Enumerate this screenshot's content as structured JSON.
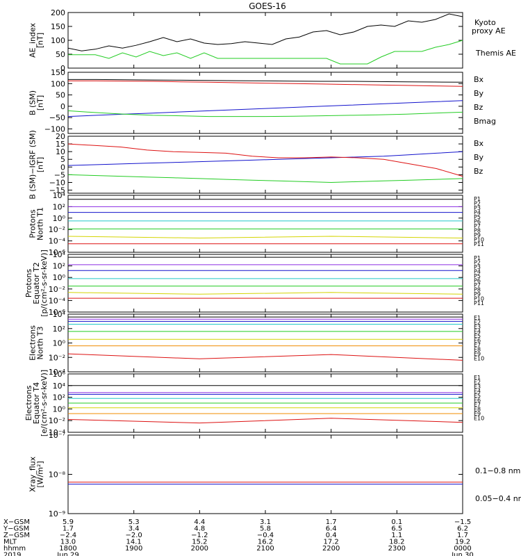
{
  "title": "GOES-16",
  "colors": {
    "black": "#000000",
    "green": "#22cc22",
    "blue": "#1111cc",
    "red": "#dd1111",
    "cyan": "#22c8c8",
    "orange": "#f08c00",
    "yellow": "#d4d400",
    "purple": "#8a2be2",
    "magenta": "#dd11dd",
    "brown": "#8b4513"
  },
  "chart_data": [
    {
      "id": "ae",
      "type": "line",
      "ylabel": "AE_index\n[nT]",
      "ylim": [
        0,
        200
      ],
      "yticks": [
        "200",
        "150",
        "100",
        "50",
        "0"
      ],
      "yvals": [
        200,
        150,
        100,
        50,
        0
      ],
      "legend": [
        {
          "label": "Kyoto\nproxy AE",
          "color": "green"
        },
        {
          "label": "Themis AE",
          "color": "black"
        }
      ],
      "series": [
        {
          "name": "Themis AE",
          "color": "black",
          "values": [
            72,
            62,
            68,
            80,
            72,
            82,
            95,
            110,
            95,
            105,
            90,
            85,
            88,
            95,
            90,
            85,
            105,
            112,
            130,
            135,
            120,
            130,
            150,
            155,
            150,
            170,
            165,
            175,
            195,
            185
          ]
        },
        {
          "name": "Kyoto proxy AE",
          "color": "green",
          "values": [
            48,
            48,
            48,
            35,
            55,
            40,
            60,
            45,
            55,
            35,
            55,
            35,
            35,
            35,
            35,
            35,
            35,
            35,
            35,
            35,
            15,
            15,
            15,
            40,
            60,
            60,
            60,
            75,
            85,
            100
          ]
        }
      ]
    },
    {
      "id": "bsm",
      "type": "line",
      "ylabel": "B (SM)\n[nT]",
      "ylim": [
        -120,
        150
      ],
      "yticks": [
        "150",
        "100",
        "50",
        "0",
        "−50",
        "−100"
      ],
      "yvals": [
        150,
        100,
        50,
        0,
        -50,
        -100
      ],
      "legend": [
        {
          "label": "Bx",
          "color": "blue"
        },
        {
          "label": "By",
          "color": "green"
        },
        {
          "label": "Bz",
          "color": "red"
        },
        {
          "label": "Bmag",
          "color": "black"
        }
      ],
      "series": [
        {
          "name": "Bx",
          "color": "blue",
          "values": [
            -45,
            -40,
            -35,
            -30,
            -25,
            -20,
            -15,
            -10,
            -5,
            0,
            5,
            10,
            15,
            20,
            25
          ]
        },
        {
          "name": "By",
          "color": "green",
          "values": [
            -20,
            -28,
            -35,
            -40,
            -42,
            -45,
            -45,
            -45,
            -44,
            -42,
            -40,
            -38,
            -35,
            -30,
            -26
          ]
        },
        {
          "name": "Bz",
          "color": "red",
          "values": [
            112,
            112,
            111,
            110,
            108,
            106,
            104,
            102,
            100,
            98,
            96,
            94,
            92,
            90,
            88
          ]
        },
        {
          "name": "Bmag",
          "color": "black",
          "values": [
            118,
            118,
            117,
            116,
            115,
            114,
            113,
            112,
            111,
            110,
            110,
            109,
            108,
            107,
            106
          ]
        }
      ]
    },
    {
      "id": "bdiff",
      "type": "line",
      "ylabel": "B (SM)−IGRF (SM)\n[nT]",
      "ylim": [
        -17,
        20
      ],
      "yticks": [
        "20",
        "15",
        "10",
        "5",
        "0",
        "−5",
        "−10",
        "−15"
      ],
      "yvals": [
        20,
        15,
        10,
        5,
        0,
        -5,
        -10,
        -15
      ],
      "legend": [
        {
          "label": "Bx",
          "color": "blue"
        },
        {
          "label": "By",
          "color": "green"
        },
        {
          "label": "Bz",
          "color": "red"
        }
      ],
      "series": [
        {
          "name": "Bx",
          "color": "blue",
          "values": [
            1,
            1.5,
            2,
            2.5,
            3,
            3.5,
            4,
            4.5,
            5,
            5.5,
            6,
            6.5,
            7,
            8,
            9,
            10
          ]
        },
        {
          "name": "By",
          "color": "green",
          "values": [
            -5,
            -5.5,
            -6,
            -6.5,
            -7,
            -7.5,
            -8,
            -8.5,
            -9,
            -9.5,
            -10,
            -9.5,
            -9,
            -8.5,
            -8,
            -7.5
          ]
        },
        {
          "name": "Bz",
          "color": "red",
          "values": [
            15,
            14,
            13,
            11,
            10,
            9.5,
            9,
            7,
            6,
            6,
            6.5,
            6,
            5,
            2,
            -1,
            -6
          ]
        }
      ]
    },
    {
      "id": "pt1",
      "type": "line",
      "log": true,
      "ylabel": "Protons\nNorth T1",
      "ylim": [
        -6,
        4
      ],
      "yticks": [
        "10⁴",
        "10²",
        "10⁰",
        "10⁻²",
        "10⁻⁴",
        "10⁻⁶"
      ],
      "yvals": [
        4,
        2,
        0,
        -2,
        -4,
        -6
      ],
      "legend": [
        {
          "label": "P1",
          "color": "black"
        },
        {
          "label": "P2",
          "color": "purple"
        },
        {
          "label": "P3",
          "color": "blue"
        },
        {
          "label": "P4",
          "color": "blue"
        },
        {
          "label": "P5",
          "color": "cyan"
        },
        {
          "label": "P6",
          "color": "green"
        },
        {
          "label": "P7",
          "color": "yellow"
        },
        {
          "label": "P8",
          "color": "yellow"
        },
        {
          "label": "P9",
          "color": "orange"
        },
        {
          "label": "P10",
          "color": "red"
        },
        {
          "label": "P11",
          "color": "red"
        }
      ],
      "series": [
        {
          "name": "P1",
          "color": "black",
          "values": [
            3.3,
            3.3,
            3.3,
            3.3
          ]
        },
        {
          "name": "P2",
          "color": "purple",
          "values": [
            2.0,
            2.0,
            2.0,
            2.0
          ]
        },
        {
          "name": "P3",
          "color": "blue",
          "values": [
            1.0,
            1.0,
            1.0,
            1.0
          ]
        },
        {
          "name": "P5",
          "color": "cyan",
          "values": [
            -0.5,
            -0.5,
            -0.5,
            -0.5
          ]
        },
        {
          "name": "P6",
          "color": "green",
          "values": [
            -1.9,
            -1.9,
            -1.9,
            -1.9
          ]
        },
        {
          "name": "P7",
          "color": "yellow",
          "values": [
            -3.2,
            -3.5,
            -3.2,
            -3.5
          ]
        },
        {
          "name": "P10",
          "color": "red",
          "values": [
            -4.5,
            -4.5,
            -4.5,
            -4.5
          ]
        }
      ]
    },
    {
      "id": "pt2",
      "type": "line",
      "log": true,
      "ylabel": "Protons\nEquator T2\n[p/(cm²-s-sr-keV)]",
      "ylim": [
        -6,
        4
      ],
      "yticks": [
        "10⁴",
        "10²",
        "10⁰",
        "10⁻²",
        "10⁻⁴",
        "10⁻⁶"
      ],
      "yvals": [
        4,
        2,
        0,
        -2,
        -4,
        -6
      ],
      "legend": [
        {
          "label": "P1",
          "color": "black"
        },
        {
          "label": "P2",
          "color": "purple"
        },
        {
          "label": "P3",
          "color": "blue"
        },
        {
          "label": "P4",
          "color": "blue"
        },
        {
          "label": "P5",
          "color": "cyan"
        },
        {
          "label": "P6",
          "color": "green"
        },
        {
          "label": "P7",
          "color": "yellow"
        },
        {
          "label": "P8",
          "color": "yellow"
        },
        {
          "label": "P9",
          "color": "orange"
        },
        {
          "label": "P10",
          "color": "red"
        },
        {
          "label": "P11",
          "color": "red"
        }
      ],
      "series": [
        {
          "name": "P1",
          "color": "black",
          "values": [
            3.5,
            3.5,
            3.5,
            3.5
          ]
        },
        {
          "name": "P2",
          "color": "purple",
          "values": [
            2.2,
            2.2,
            2.2,
            2.2
          ]
        },
        {
          "name": "P3",
          "color": "blue",
          "values": [
            1.2,
            1.2,
            1.2,
            1.2
          ]
        },
        {
          "name": "P5",
          "color": "cyan",
          "values": [
            -0.2,
            -0.2,
            -0.2,
            -0.2
          ]
        },
        {
          "name": "P6",
          "color": "green",
          "values": [
            -1.5,
            -1.5,
            -1.5,
            -1.5
          ]
        },
        {
          "name": "P7",
          "color": "yellow",
          "values": [
            -2.6,
            -2.9,
            -2.6,
            -2.9
          ]
        },
        {
          "name": "P10",
          "color": "red",
          "values": [
            -3.6,
            -3.6,
            -3.6,
            -3.6
          ]
        }
      ]
    },
    {
      "id": "et3",
      "type": "line",
      "log": true,
      "ylabel": "Electrons\nNorth T3",
      "ylim": [
        -4,
        4
      ],
      "yticks": [
        "10⁴",
        "10²",
        "10⁰",
        "10⁻²",
        "10⁻⁴"
      ],
      "yvals": [
        4,
        2,
        0,
        -2,
        -4
      ],
      "legend": [
        {
          "label": "E1",
          "color": "black"
        },
        {
          "label": "E2",
          "color": "purple"
        },
        {
          "label": "E3",
          "color": "blue"
        },
        {
          "label": "E4",
          "color": "cyan"
        },
        {
          "label": "E5",
          "color": "cyan"
        },
        {
          "label": "E6",
          "color": "green"
        },
        {
          "label": "E7",
          "color": "yellow"
        },
        {
          "label": "E8",
          "color": "orange"
        },
        {
          "label": "E9",
          "color": "red"
        },
        {
          "label": "E10",
          "color": "red"
        }
      ],
      "series": [
        {
          "name": "E1",
          "color": "black",
          "values": [
            3.6,
            3.6,
            3.6,
            3.6
          ]
        },
        {
          "name": "E2",
          "color": "purple",
          "values": [
            3.3,
            3.3,
            3.3,
            3.3
          ]
        },
        {
          "name": "E3",
          "color": "blue",
          "values": [
            3.0,
            3.0,
            3.0,
            3.0
          ]
        },
        {
          "name": "E4",
          "color": "cyan",
          "values": [
            2.6,
            2.6,
            2.6,
            2.6
          ]
        },
        {
          "name": "E6",
          "color": "green",
          "values": [
            1.6,
            1.6,
            1.6,
            1.6
          ]
        },
        {
          "name": "E7",
          "color": "yellow",
          "values": [
            0.5,
            0.5,
            0.5,
            0.5
          ]
        },
        {
          "name": "E8",
          "color": "orange",
          "values": [
            -0.4,
            -0.4,
            -0.4,
            -0.4
          ]
        },
        {
          "name": "E9",
          "color": "red",
          "values": [
            -1.5,
            -2.2,
            -1.6,
            -2.4
          ]
        }
      ]
    },
    {
      "id": "et4",
      "type": "line",
      "log": true,
      "ylabel": "Electrons\nEquator T4\n[e/(cm²-s-sr-keV)]",
      "ylim": [
        -4,
        6
      ],
      "yticks": [
        "10⁶",
        "10⁴",
        "10²",
        "10⁰",
        "10⁻²",
        "10⁻⁴"
      ],
      "yvals": [
        6,
        4,
        2,
        0,
        -2,
        -4
      ],
      "legend": [
        {
          "label": "E1",
          "color": "black"
        },
        {
          "label": "E2",
          "color": "purple"
        },
        {
          "label": "E3",
          "color": "blue"
        },
        {
          "label": "E4",
          "color": "cyan"
        },
        {
          "label": "E5",
          "color": "cyan"
        },
        {
          "label": "E6",
          "color": "green"
        },
        {
          "label": "E7",
          "color": "yellow"
        },
        {
          "label": "E8",
          "color": "orange"
        },
        {
          "label": "E9",
          "color": "red"
        },
        {
          "label": "E10",
          "color": "red"
        }
      ],
      "series": [
        {
          "name": "E1",
          "color": "black",
          "values": [
            4.0,
            4.0,
            4.0,
            4.0
          ]
        },
        {
          "name": "E2",
          "color": "purple",
          "values": [
            2.8,
            2.8,
            2.8,
            2.8
          ]
        },
        {
          "name": "E3",
          "color": "blue",
          "values": [
            2.5,
            2.5,
            2.5,
            2.5
          ]
        },
        {
          "name": "E4",
          "color": "cyan",
          "values": [
            1.8,
            1.8,
            1.8,
            1.8
          ]
        },
        {
          "name": "E6",
          "color": "green",
          "values": [
            1.0,
            1.0,
            1.0,
            1.0
          ]
        },
        {
          "name": "E7",
          "color": "yellow",
          "values": [
            0.2,
            0.2,
            0.2,
            0.2
          ]
        },
        {
          "name": "E8",
          "color": "orange",
          "values": [
            -0.8,
            -0.8,
            -0.8,
            -0.8
          ]
        },
        {
          "name": "E9",
          "color": "red",
          "values": [
            -1.8,
            -2.4,
            -1.6,
            -2.3
          ]
        }
      ]
    },
    {
      "id": "xray",
      "type": "line",
      "log": true,
      "ylabel": "Xray_flux\n[W/m²]",
      "ylim": [
        -9,
        -7
      ],
      "yticks": [
        "10⁻⁷",
        "10⁻⁸",
        "10⁻⁹"
      ],
      "yvals": [
        -7,
        -8,
        -9
      ],
      "legend": [
        {
          "label": "0.1−0.8 nm",
          "color": "red"
        },
        {
          "label": "0.05−0.4 nm",
          "color": "blue"
        }
      ],
      "series": [
        {
          "name": "0.1−0.8 nm",
          "color": "red",
          "values": [
            -8.2,
            -8.2,
            -8.2,
            -8.2
          ]
        },
        {
          "name": "0.05−0.4 nm",
          "color": "blue",
          "values": [
            -8.25,
            -8.25,
            -8.25,
            -8.25
          ]
        }
      ]
    }
  ],
  "footer": {
    "row_labels": [
      "X−GSM",
      "Y−GSM",
      "Z−GSM",
      "MLT",
      "hhmm",
      "2019"
    ],
    "columns": [
      [
        "5.9",
        "1.7",
        "−2.4",
        "13.0",
        "1800",
        "Jun 29"
      ],
      [
        "5.3",
        "3.4",
        "−2.0",
        "14.1",
        "1900",
        ""
      ],
      [
        "4.4",
        "4.8",
        "−1.2",
        "15.2",
        "2000",
        ""
      ],
      [
        "3.1",
        "5.8",
        "−0.4",
        "16.2",
        "2100",
        ""
      ],
      [
        "1.7",
        "6.4",
        "0.4",
        "17.2",
        "2200",
        ""
      ],
      [
        "0.1",
        "6.5",
        "1.1",
        "18.2",
        "2300",
        ""
      ],
      [
        "−1.5",
        "6.2",
        "1.7",
        "19.2",
        "0000",
        "Jun 30"
      ]
    ]
  }
}
